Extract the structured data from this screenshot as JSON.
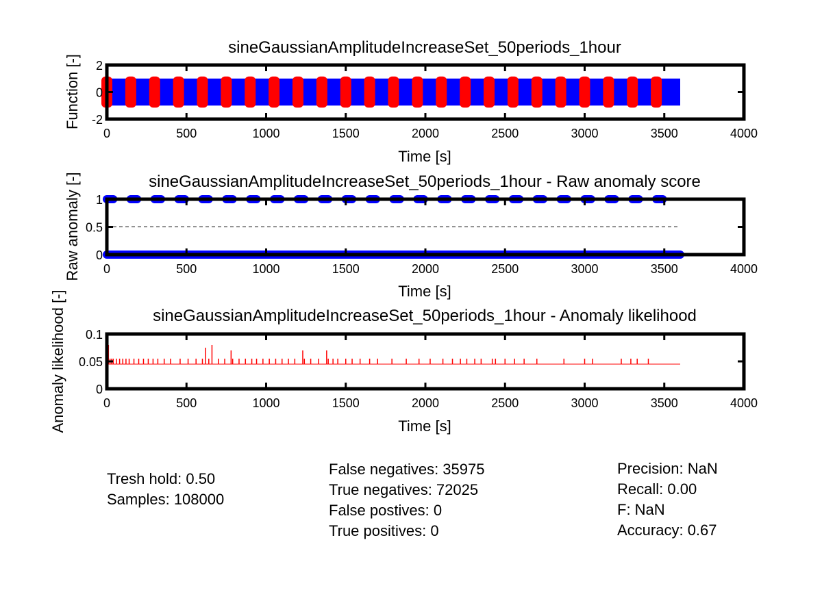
{
  "colors": {
    "function": "#0000ff",
    "anomaly_marks": "#ff0000",
    "raw_score": "#0000ff",
    "likelihood": "#ff0000",
    "threshold_line": "#000000",
    "frame": "#000000"
  },
  "chart_data": [
    {
      "type": "line",
      "title": "sineGaussianAmplitudeIncreaseSet_50periods_1hour",
      "xlabel": "Time [s]",
      "ylabel": "Function [-]",
      "xlim": [
        0,
        4000
      ],
      "ylim": [
        -2,
        2
      ],
      "xticks": [
        0,
        500,
        1000,
        1500,
        2000,
        2500,
        3000,
        3500,
        4000
      ],
      "yticks": [
        -2,
        0,
        2
      ],
      "grid": false,
      "series": [
        {
          "kind": "dense-oscillation",
          "x_range": [
            0,
            3600
          ],
          "y_range": [
            -1,
            1
          ]
        },
        {
          "kind": "anomaly-marks",
          "x": [
            0,
            150,
            300,
            450,
            600,
            750,
            900,
            1050,
            1200,
            1350,
            1500,
            1650,
            1800,
            1950,
            2100,
            2250,
            2400,
            2550,
            2700,
            2850,
            3000,
            3150,
            3300,
            3450
          ],
          "y_range": [
            -1,
            1
          ]
        }
      ]
    },
    {
      "type": "scatter",
      "title": "sineGaussianAmplitudeIncreaseSet_50periods_1hour - Raw anomaly score",
      "xlabel": "Time [s]",
      "ylabel": "Raw anomaly [-]",
      "xlim": [
        0,
        4000
      ],
      "ylim": [
        0,
        1
      ],
      "xticks": [
        0,
        500,
        1000,
        1500,
        2000,
        2500,
        3000,
        3500,
        4000
      ],
      "yticks": [
        0,
        0.5,
        1
      ],
      "ytick_labels": [
        "0",
        "0.5",
        "1"
      ],
      "threshold": 0.5,
      "grid": false,
      "series": [
        {
          "kind": "score-one",
          "x": [
            0,
            150,
            300,
            450,
            600,
            750,
            900,
            1050,
            1200,
            1350,
            1500,
            1650,
            1800,
            1950,
            2100,
            2250,
            2400,
            2550,
            2700,
            2850,
            3000,
            3150,
            3300,
            3450
          ],
          "x_span": [
            0,
            40
          ],
          "y": 1
        },
        {
          "kind": "score-zero",
          "x_range": [
            0,
            3600
          ],
          "y": 0
        }
      ]
    },
    {
      "type": "line",
      "title": "sineGaussianAmplitudeIncreaseSet_50periods_1hour - Anomaly likelihood",
      "xlabel": "Time [s]",
      "ylabel": "Anomaly likelihood [-]",
      "xlim": [
        0,
        4000
      ],
      "ylim": [
        0,
        0.1
      ],
      "xticks": [
        0,
        500,
        1000,
        1500,
        2000,
        2500,
        3000,
        3500,
        4000
      ],
      "yticks": [
        0,
        0.05,
        0.1
      ],
      "grid": false,
      "baseline": {
        "x_range": [
          0,
          3600
        ],
        "y": 0.045
      },
      "spikes": [
        [
          10,
          0.08
        ],
        [
          20,
          0.055
        ],
        [
          30,
          0.055
        ],
        [
          40,
          0.055
        ],
        [
          60,
          0.055
        ],
        [
          80,
          0.055
        ],
        [
          100,
          0.055
        ],
        [
          120,
          0.055
        ],
        [
          140,
          0.055
        ],
        [
          170,
          0.055
        ],
        [
          200,
          0.055
        ],
        [
          230,
          0.055
        ],
        [
          260,
          0.055
        ],
        [
          290,
          0.055
        ],
        [
          320,
          0.055
        ],
        [
          360,
          0.055
        ],
        [
          400,
          0.055
        ],
        [
          460,
          0.055
        ],
        [
          510,
          0.055
        ],
        [
          560,
          0.055
        ],
        [
          600,
          0.055
        ],
        [
          620,
          0.075
        ],
        [
          640,
          0.055
        ],
        [
          660,
          0.08
        ],
        [
          700,
          0.055
        ],
        [
          740,
          0.055
        ],
        [
          780,
          0.07
        ],
        [
          790,
          0.055
        ],
        [
          830,
          0.055
        ],
        [
          870,
          0.055
        ],
        [
          910,
          0.055
        ],
        [
          940,
          0.055
        ],
        [
          980,
          0.055
        ],
        [
          1020,
          0.055
        ],
        [
          1060,
          0.055
        ],
        [
          1100,
          0.055
        ],
        [
          1140,
          0.055
        ],
        [
          1180,
          0.055
        ],
        [
          1230,
          0.07
        ],
        [
          1240,
          0.055
        ],
        [
          1280,
          0.055
        ],
        [
          1330,
          0.055
        ],
        [
          1380,
          0.07
        ],
        [
          1390,
          0.055
        ],
        [
          1420,
          0.055
        ],
        [
          1450,
          0.055
        ],
        [
          1500,
          0.055
        ],
        [
          1540,
          0.055
        ],
        [
          1590,
          0.055
        ],
        [
          1650,
          0.055
        ],
        [
          1700,
          0.055
        ],
        [
          1790,
          0.055
        ],
        [
          1880,
          0.055
        ],
        [
          1960,
          0.055
        ],
        [
          2030,
          0.055
        ],
        [
          2110,
          0.055
        ],
        [
          2170,
          0.055
        ],
        [
          2220,
          0.055
        ],
        [
          2260,
          0.055
        ],
        [
          2310,
          0.055
        ],
        [
          2350,
          0.055
        ],
        [
          2420,
          0.055
        ],
        [
          2440,
          0.055
        ],
        [
          2500,
          0.055
        ],
        [
          2560,
          0.055
        ],
        [
          2620,
          0.055
        ],
        [
          2700,
          0.055
        ],
        [
          2870,
          0.055
        ],
        [
          3000,
          0.055
        ],
        [
          3050,
          0.055
        ],
        [
          3230,
          0.055
        ],
        [
          3290,
          0.055
        ],
        [
          3330,
          0.055
        ],
        [
          3400,
          0.055
        ]
      ]
    }
  ],
  "stats": {
    "col1": [
      "Tresh hold: 0.50",
      "Samples: 108000"
    ],
    "col2": [
      "False negatives: 35975",
      "True negatives: 72025",
      "False postives: 0",
      "True positives: 0"
    ],
    "col3": [
      "Precision:  NaN",
      "Recall: 0.00",
      "F:  NaN",
      "Accuracy: 0.67"
    ]
  }
}
